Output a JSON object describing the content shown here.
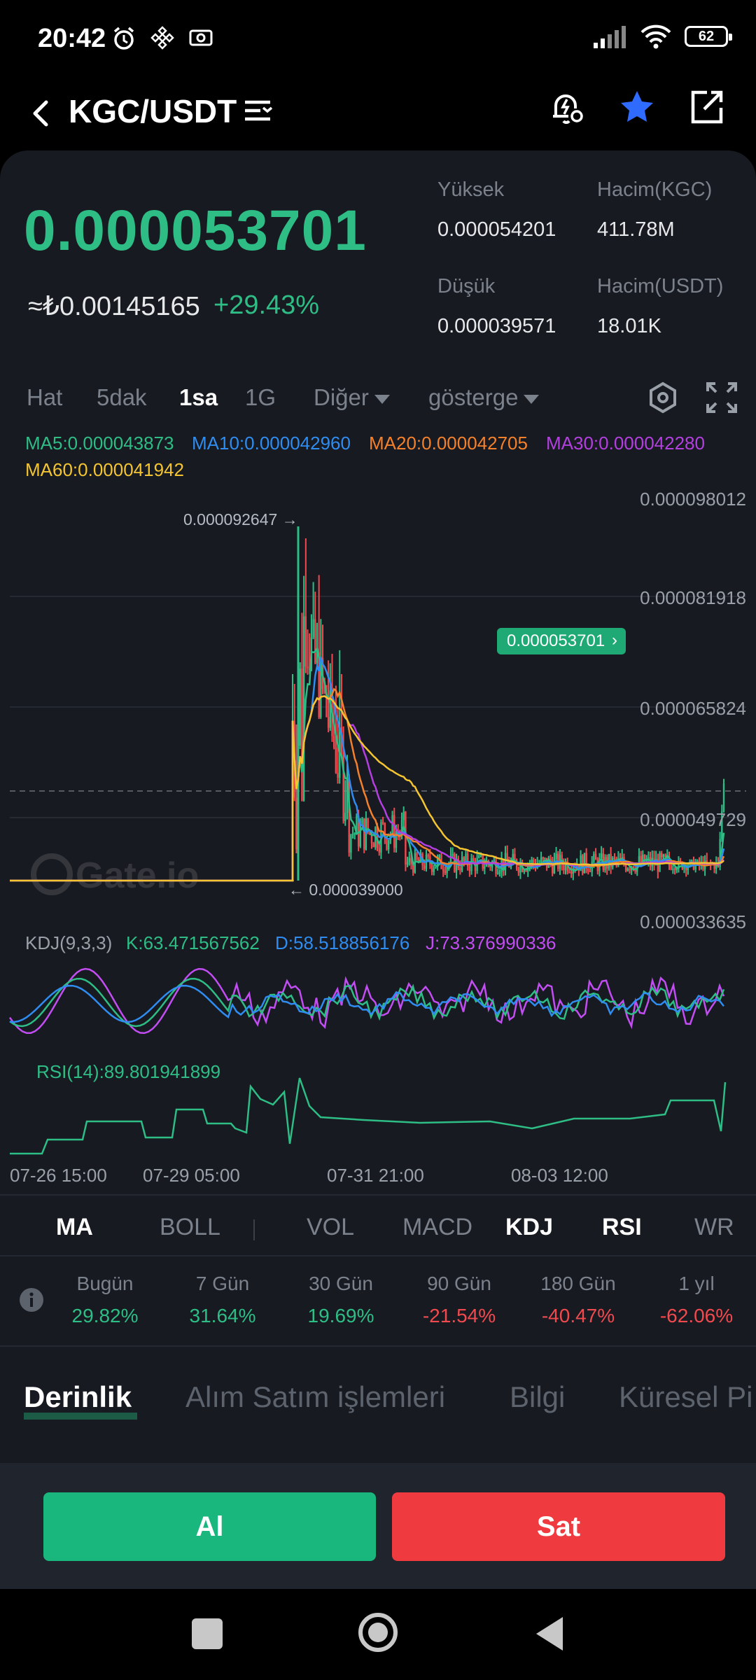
{
  "status": {
    "time": "20:42",
    "battery": "62"
  },
  "header": {
    "title": "KGC/USDT"
  },
  "price": {
    "last": "0.000053701",
    "fiat": "≈₺0.00145165",
    "change": "+29.43%"
  },
  "stats": {
    "high_label": "Yüksek",
    "high_value": "0.000054201",
    "vol_base_label": "Hacim(KGC)",
    "vol_base_value": "411.78M",
    "low_label": "Düşük",
    "low_value": "0.000039571",
    "vol_quote_label": "Hacim(USDT)",
    "vol_quote_value": "18.01K"
  },
  "chart_tabs": {
    "line": "Hat",
    "m5": "5dak",
    "h1": "1sa",
    "d1": "1G",
    "more": "Diğer",
    "indicator": "gösterge"
  },
  "ma": {
    "ma5": "MA5:0.000043873",
    "ma10": "MA10:0.000042960",
    "ma20": "MA20:0.000042705",
    "ma30": "MA30:0.000042280",
    "ma60": "MA60:0.000041942"
  },
  "colors": {
    "ma5": "#2ebd85",
    "ma10": "#2f8cf0",
    "ma20": "#f3812c",
    "ma30": "#b43fe0",
    "ma60": "#f4c531",
    "up": "#2ebd85",
    "down": "#f04a4e"
  },
  "price_axis": [
    "0.000098012",
    "0.000081918",
    "0.000065824",
    "0.000049729",
    "0.000033635"
  ],
  "annotations": {
    "high": "0.000092647 →",
    "low": "← 0.000039000",
    "current": "0.000053701"
  },
  "kdj": {
    "label": "KDJ(9,3,3)",
    "k": "K:63.471567562",
    "d": "D:58.518856176",
    "j": "J:73.376990336"
  },
  "rsi": {
    "label": "RSI(14):89.801941899"
  },
  "time_axis": [
    "07-26 15:00",
    "07-29 05:00",
    "07-31 21:00",
    "08-03 12:00"
  ],
  "indicator_tabs": [
    "MA",
    "BOLL",
    "VOL",
    "MACD",
    "KDJ",
    "RSI",
    "WR"
  ],
  "performance": [
    {
      "label": "Bugün",
      "value": "29.82%"
    },
    {
      "label": "7 Gün",
      "value": "31.64%"
    },
    {
      "label": "30 Gün",
      "value": "19.69%"
    },
    {
      "label": "90 Gün",
      "value": "-21.54%"
    },
    {
      "label": "180 Gün",
      "value": "-40.47%"
    },
    {
      "label": "1 yıl",
      "value": "-62.06%"
    }
  ],
  "sections": [
    "Derinlik",
    "Alım Satım işlemleri",
    "Bilgi",
    "Küresel Pi"
  ],
  "actions": {
    "buy": "Al",
    "sell": "Sat"
  }
}
